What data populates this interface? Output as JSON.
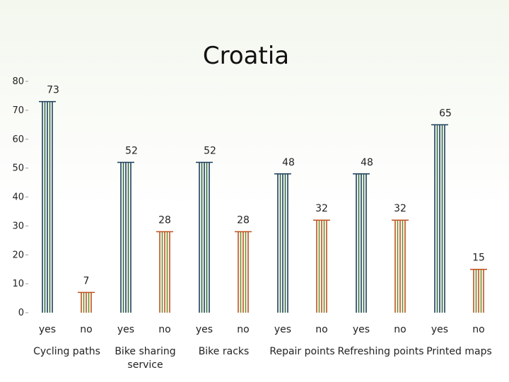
{
  "chart_data": {
    "type": "bar",
    "title": "Croatia",
    "xlabel": "",
    "ylabel": "",
    "ylim": [
      0,
      80
    ],
    "yticks": [
      0,
      10,
      20,
      30,
      40,
      50,
      60,
      70,
      80
    ],
    "grid": false,
    "legend": "none",
    "groups": [
      {
        "label": "Cycling paths",
        "bars": [
          {
            "label": "yes",
            "value": 73
          },
          {
            "label": "no",
            "value": 7
          }
        ]
      },
      {
        "label": "Bike sharing service",
        "bars": [
          {
            "label": "yes",
            "value": 52
          },
          {
            "label": "no",
            "value": 28
          }
        ]
      },
      {
        "label": "Bike racks",
        "bars": [
          {
            "label": "yes",
            "value": 52
          },
          {
            "label": "no",
            "value": 28
          }
        ]
      },
      {
        "label": "Repair points",
        "bars": [
          {
            "label": "yes",
            "value": 48
          },
          {
            "label": "no",
            "value": 32
          }
        ]
      },
      {
        "label": "Refreshing points",
        "bars": [
          {
            "label": "yes",
            "value": 48
          },
          {
            "label": "no",
            "value": 32
          }
        ]
      },
      {
        "label": "Printed maps",
        "bars": [
          {
            "label": "yes",
            "value": 65
          },
          {
            "label": "no",
            "value": 15
          }
        ]
      }
    ],
    "colors": {
      "yes": "#1c3d5a",
      "yes_stripe": "#2f6b3a",
      "no": "#c0501f",
      "no_stripe": "#6b8e23",
      "axis": "#999999"
    }
  }
}
